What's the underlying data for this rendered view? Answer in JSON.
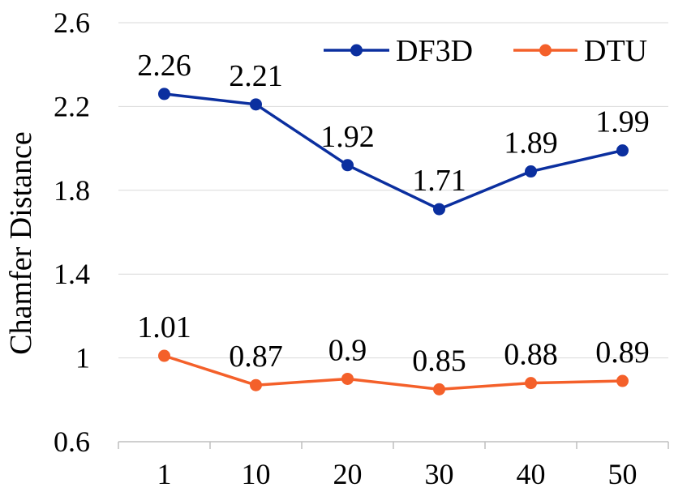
{
  "chart_data": {
    "type": "line",
    "title": "",
    "xlabel": "",
    "ylabel": "Chamfer Distance",
    "categories": [
      "1",
      "10",
      "20",
      "30",
      "40",
      "50"
    ],
    "ylim": [
      0.6,
      2.6
    ],
    "yticks": [
      0.6,
      1,
      1.4,
      1.8,
      2.2,
      2.6
    ],
    "ytick_labels": [
      "0.6",
      "1",
      "1.4",
      "1.8",
      "2.2",
      "2.6"
    ],
    "grid": true,
    "legend_position": "top-right",
    "series": [
      {
        "name": "DF3D",
        "color": "#0b2f9f",
        "values": [
          2.26,
          2.21,
          1.92,
          1.71,
          1.89,
          1.99
        ],
        "labels": [
          "2.26",
          "2.21",
          "1.92",
          "1.71",
          "1.89",
          "1.99"
        ]
      },
      {
        "name": "DTU",
        "color": "#f4602a",
        "values": [
          1.01,
          0.87,
          0.9,
          0.85,
          0.88,
          0.89
        ],
        "labels": [
          "1.01",
          "0.87",
          "0.9",
          "0.85",
          "0.88",
          "0.89"
        ]
      }
    ]
  }
}
